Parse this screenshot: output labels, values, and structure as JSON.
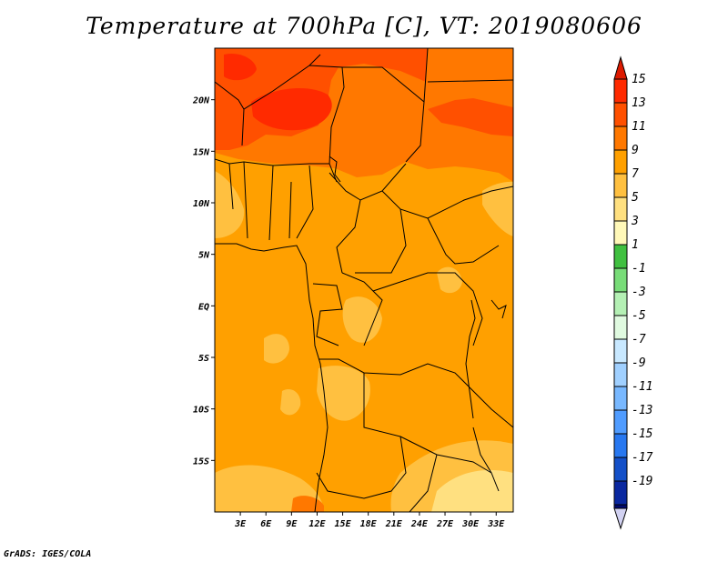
{
  "title": "Temperature at 700hPa [C], VT: 2019080606",
  "credit": "GrADS: IGES/COLA",
  "map": {
    "lon_range": [
      0,
      35
    ],
    "lat_range": [
      -20,
      25
    ],
    "lat_labels": [
      {
        "lat": 20,
        "text": "20N"
      },
      {
        "lat": 15,
        "text": "15N"
      },
      {
        "lat": 10,
        "text": "10N"
      },
      {
        "lat": 5,
        "text": "5N"
      },
      {
        "lat": 0,
        "text": "EQ"
      },
      {
        "lat": -5,
        "text": "5S"
      },
      {
        "lat": -10,
        "text": "10S"
      },
      {
        "lat": -15,
        "text": "15S"
      }
    ],
    "lon_labels": [
      {
        "lon": 3,
        "text": "3E"
      },
      {
        "lon": 6,
        "text": "6E"
      },
      {
        "lon": 9,
        "text": "9E"
      },
      {
        "lon": 12,
        "text": "12E"
      },
      {
        "lon": 15,
        "text": "15E"
      },
      {
        "lon": 18,
        "text": "18E"
      },
      {
        "lon": 21,
        "text": "21E"
      },
      {
        "lon": 24,
        "text": "24E"
      },
      {
        "lon": 27,
        "text": "27E"
      },
      {
        "lon": 30,
        "text": "30E"
      },
      {
        "lon": 33,
        "text": "33E"
      }
    ],
    "background_color": "#ffa000"
  },
  "colorbar": {
    "labels": [
      "15",
      "13",
      "11",
      "9",
      "7",
      "5",
      "3",
      "1",
      "-1",
      "-3",
      "-5",
      "-7",
      "-9",
      "-11",
      "-13",
      "-15",
      "-17",
      "-19"
    ],
    "colors": [
      "#ff2a00",
      "#ff5000",
      "#ff7800",
      "#ffa000",
      "#ffc040",
      "#ffe080",
      "#fff8b8",
      "#40c040",
      "#78dc78",
      "#b4f0b4",
      "#e0fae0",
      "#c8e8ff",
      "#a0d0ff",
      "#78b8ff",
      "#509cff",
      "#2878f0",
      "#1450c8",
      "#0a28a0"
    ],
    "top_arrow_color": "#dd1a00",
    "bottom_arrow_color": "#d2d2f2",
    "bottom_box_color": "#000a70"
  }
}
